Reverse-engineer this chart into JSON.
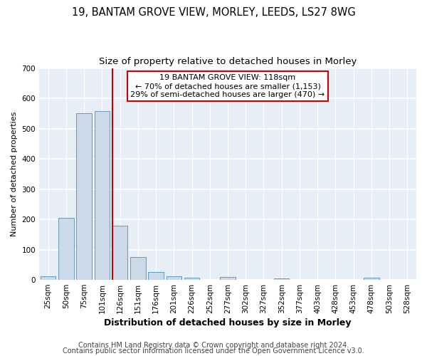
{
  "title1": "19, BANTAM GROVE VIEW, MORLEY, LEEDS, LS27 8WG",
  "title2": "Size of property relative to detached houses in Morley",
  "xlabel": "Distribution of detached houses by size in Morley",
  "ylabel": "Number of detached properties",
  "categories": [
    "25sqm",
    "50sqm",
    "75sqm",
    "101sqm",
    "126sqm",
    "151sqm",
    "176sqm",
    "201sqm",
    "226sqm",
    "252sqm",
    "277sqm",
    "302sqm",
    "327sqm",
    "352sqm",
    "377sqm",
    "403sqm",
    "428sqm",
    "453sqm",
    "478sqm",
    "503sqm",
    "528sqm"
  ],
  "values": [
    12,
    204,
    551,
    557,
    178,
    75,
    27,
    12,
    7,
    0,
    10,
    0,
    0,
    6,
    0,
    0,
    0,
    0,
    7,
    0,
    0
  ],
  "bar_color": "#ccd9e8",
  "bar_edge_color": "#6699bb",
  "vline_color": "#cc0000",
  "vline_bin_index": 4,
  "annotation_box_text": "19 BANTAM GROVE VIEW: 118sqm\n← 70% of detached houses are smaller (1,153)\n29% of semi-detached houses are larger (470) →",
  "box_edge_color": "#cc0000",
  "ylim": [
    0,
    700
  ],
  "yticks": [
    0,
    100,
    200,
    300,
    400,
    500,
    600,
    700
  ],
  "background_color": "#e8eef5",
  "grid_color": "#ffffff",
  "footer1": "Contains HM Land Registry data © Crown copyright and database right 2024.",
  "footer2": "Contains public sector information licensed under the Open Government Licence v3.0.",
  "title1_fontsize": 10.5,
  "title2_fontsize": 9.5,
  "xlabel_fontsize": 9,
  "ylabel_fontsize": 8,
  "tick_fontsize": 7.5,
  "annot_fontsize": 8,
  "footer_fontsize": 7
}
